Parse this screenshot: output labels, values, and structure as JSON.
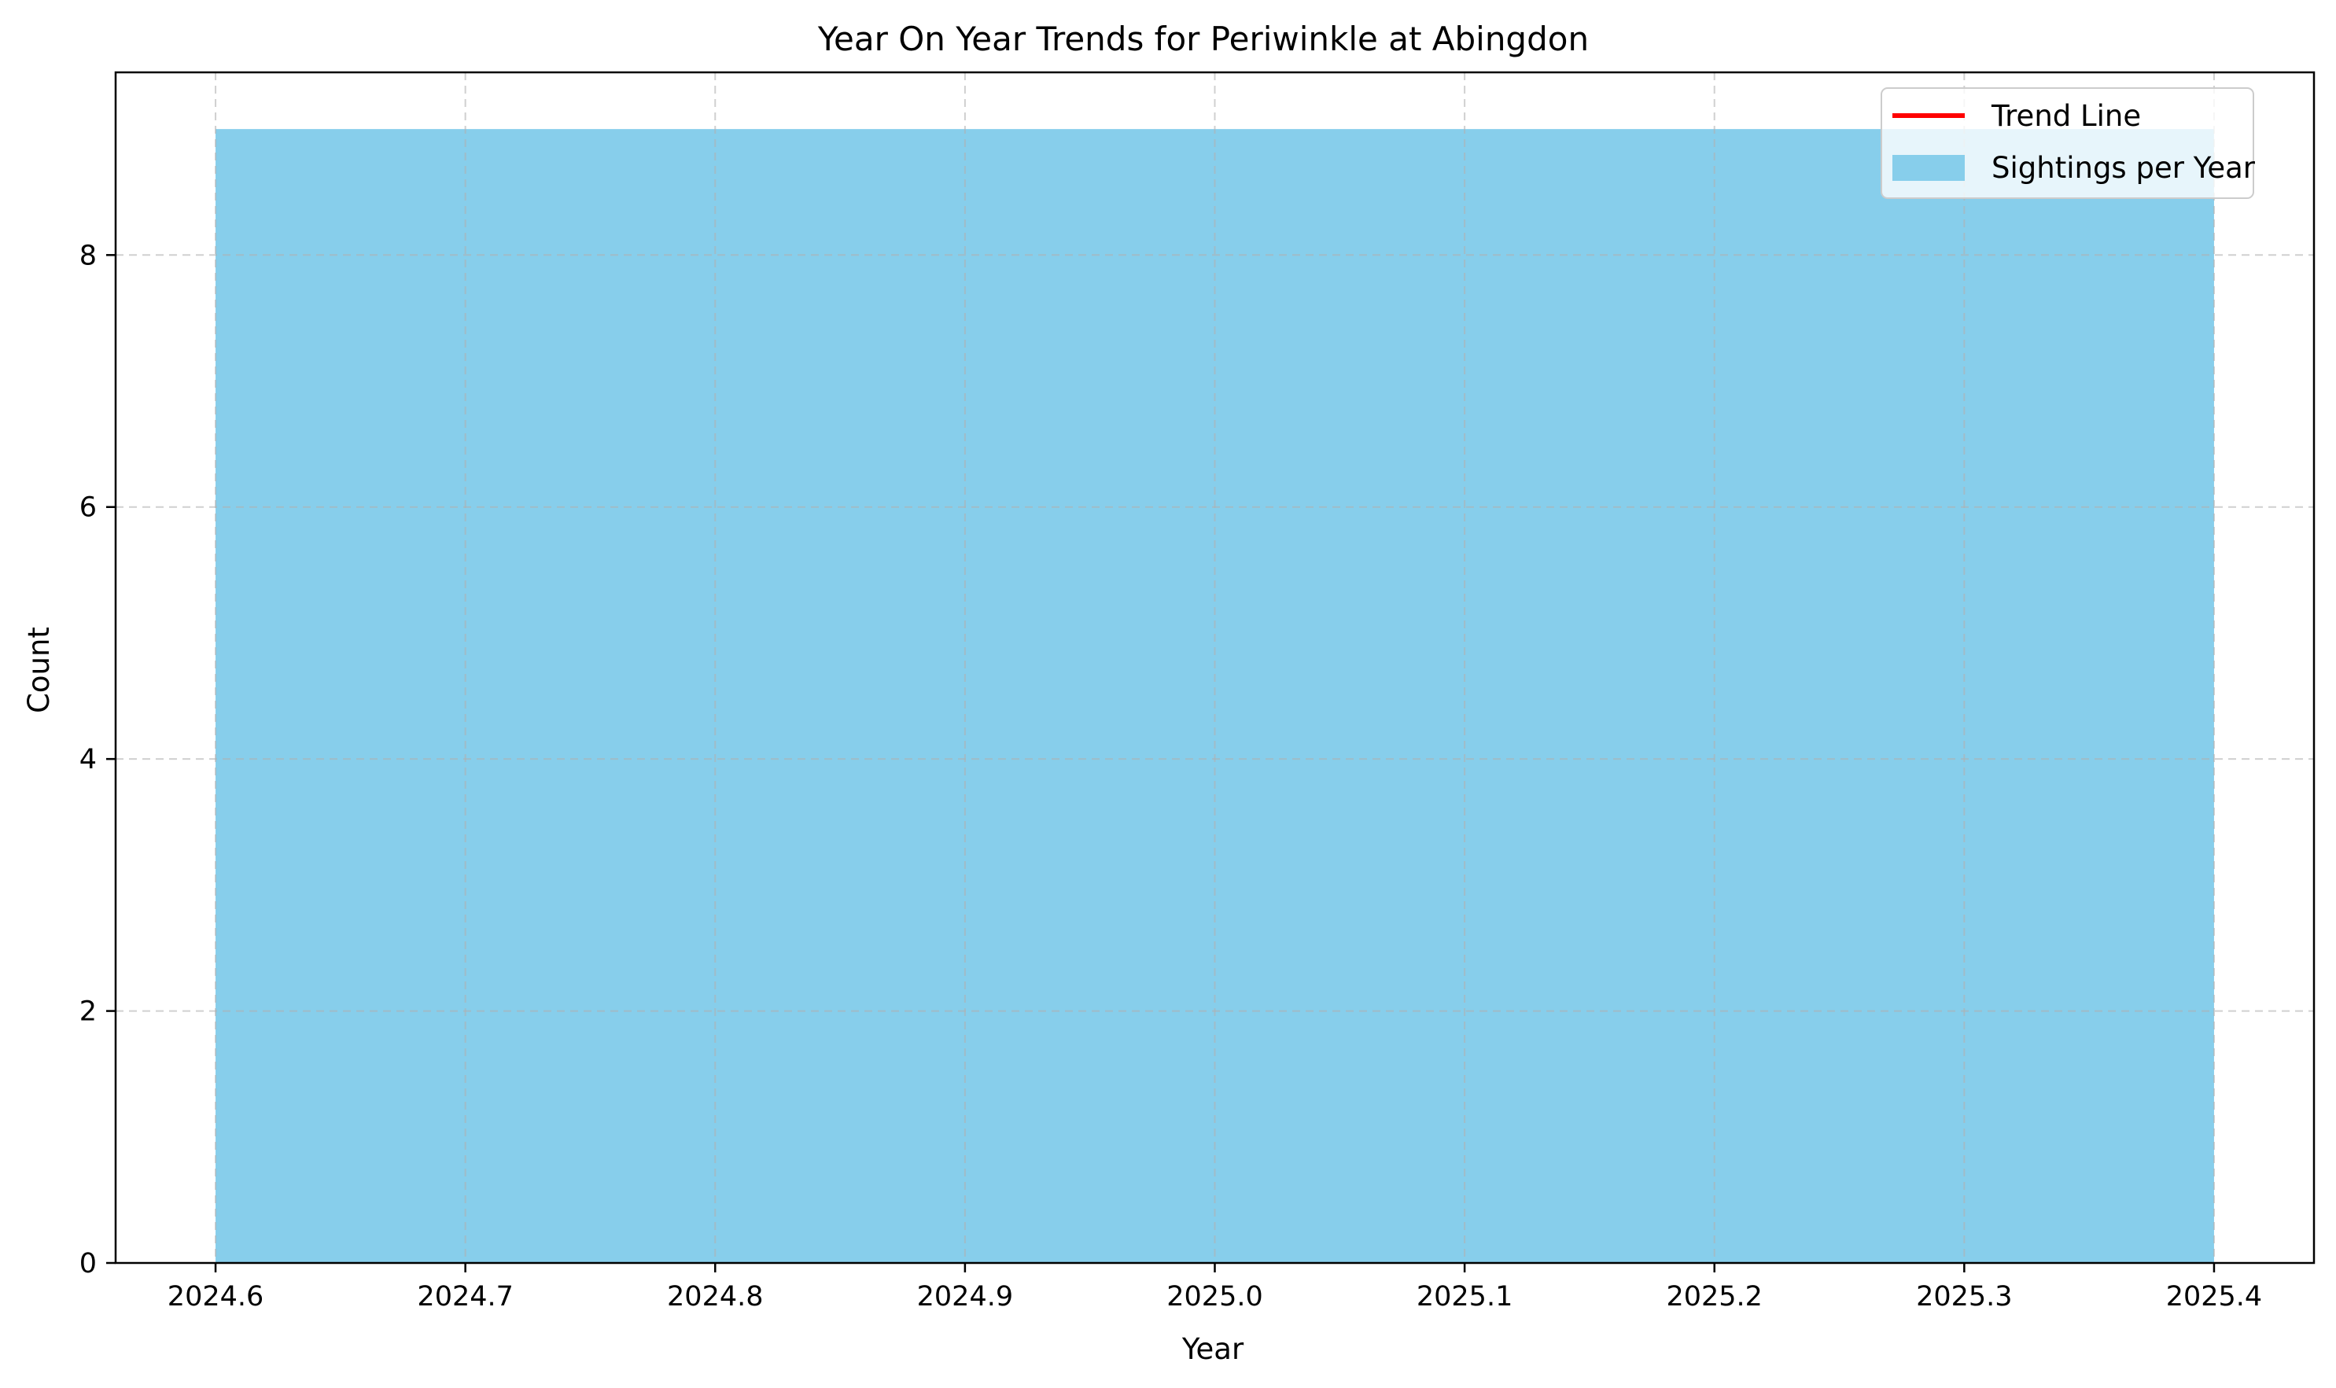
{
  "chart_data": {
    "type": "area",
    "title": "Year On Year Trends for Periwinkle at Abingdon",
    "xlabel": "Year",
    "ylabel": "Count",
    "xlim": [
      2024.56,
      2025.44
    ],
    "ylim": [
      0,
      9.45
    ],
    "x_ticks": [
      2024.6,
      2024.7,
      2024.8,
      2024.9,
      2025.0,
      2025.1,
      2025.2,
      2025.3,
      2025.4
    ],
    "x_tick_labels": [
      "2024.6",
      "2024.7",
      "2024.8",
      "2024.9",
      "2025.0",
      "2025.1",
      "2025.2",
      "2025.3",
      "2025.4"
    ],
    "y_ticks": [
      0,
      2,
      4,
      6,
      8
    ],
    "y_tick_labels": [
      "0",
      "2",
      "4",
      "6",
      "8"
    ],
    "grid": true,
    "legend_position": "top-right",
    "series": [
      {
        "name": "Sightings per Year",
        "kind": "area",
        "color": "#87ceeb",
        "x": [
          2024.6,
          2025.4
        ],
        "y": [
          9,
          9
        ]
      },
      {
        "name": "Trend Line",
        "kind": "line",
        "color": "#ff0000",
        "x": [],
        "y": []
      }
    ]
  }
}
